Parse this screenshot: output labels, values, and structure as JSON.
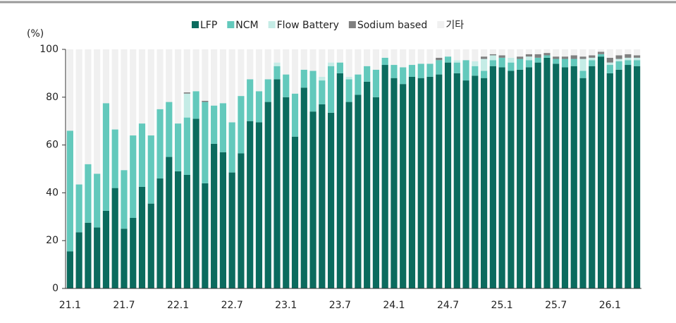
{
  "chart_data": {
    "type": "stacked_bar",
    "y_unit_label": "(%)",
    "categories": [
      "21.1",
      null,
      null,
      null,
      null,
      null,
      "21.7",
      null,
      null,
      null,
      null,
      null,
      "22.1",
      null,
      null,
      null,
      null,
      null,
      "22.7",
      null,
      null,
      null,
      null,
      null,
      "23.1",
      null,
      null,
      null,
      null,
      null,
      "23.7",
      null,
      null,
      null,
      null,
      null,
      "24.1",
      null,
      null,
      null,
      null,
      null,
      "24.7",
      null,
      null,
      null,
      null,
      null,
      "25.1",
      null,
      null,
      null,
      null,
      null,
      "25.7",
      null,
      null,
      null,
      null,
      null,
      "26.1",
      null,
      null,
      null
    ],
    "series": [
      {
        "name": "LFP",
        "color": "#0b6b5e",
        "values": [
          15.5,
          23.5,
          27.5,
          25.5,
          32.5,
          42,
          25,
          29.5,
          42.5,
          35.5,
          46,
          55,
          49,
          47.5,
          71,
          44,
          60.5,
          57,
          48.5,
          56.5,
          70,
          69.5,
          78,
          87.5,
          80,
          63.5,
          84,
          74,
          77,
          73.5,
          90,
          78,
          81,
          86.5,
          80,
          93.5,
          88,
          85.5,
          88.5,
          88,
          88.5,
          89.5,
          94.5,
          90,
          87,
          89,
          88,
          93,
          92.5,
          91,
          91.5,
          92.5,
          94.5,
          96.5,
          94,
          92.5,
          93,
          88,
          93,
          97,
          90,
          91.5,
          93.5,
          93
        ]
      },
      {
        "name": "NCM",
        "color": "#63c9bc",
        "values": [
          50.5,
          20,
          24.5,
          22.5,
          45,
          24.5,
          24.5,
          34.5,
          26.5,
          28.5,
          29,
          23,
          20,
          24,
          11.5,
          34,
          16,
          20.5,
          21,
          24,
          17.5,
          13,
          9.5,
          5.5,
          9.5,
          18,
          7.5,
          17,
          10,
          19.5,
          4.5,
          9.5,
          8.5,
          6.5,
          11.5,
          3,
          5.5,
          7,
          5,
          6,
          5.5,
          6,
          2.5,
          4.5,
          8.5,
          4,
          3,
          2.5,
          4,
          3.5,
          4.5,
          3,
          2,
          1,
          2,
          3.5,
          3,
          3,
          2.5,
          1,
          3.5,
          3.5,
          2,
          2.5
        ]
      },
      {
        "name": "Flow Battery",
        "color": "#c5ece6",
        "values": [
          0,
          0,
          0,
          0,
          0,
          0,
          0,
          0,
          0,
          0,
          0,
          0,
          0,
          10,
          0,
          0,
          0,
          0,
          0,
          0,
          0,
          0,
          0,
          1.5,
          0,
          0,
          0,
          0,
          1.5,
          1.5,
          0,
          1,
          0,
          0,
          0,
          0,
          0,
          0,
          0,
          0,
          0,
          0,
          0,
          1,
          0,
          2,
          5,
          2,
          0,
          2,
          0,
          1.5,
          0,
          0,
          0,
          0,
          0,
          5,
          1,
          0,
          1,
          1,
          1,
          1
        ]
      },
      {
        "name": "Sodium based",
        "color": "#808080",
        "values": [
          0,
          0,
          0,
          0,
          0,
          0,
          0,
          0,
          0,
          0,
          0,
          0,
          0,
          0.5,
          0,
          0.5,
          0,
          0,
          0,
          0,
          0,
          0,
          0,
          0,
          0,
          0,
          0,
          0,
          0,
          0,
          0,
          0,
          0,
          0,
          0,
          0,
          0,
          0,
          0,
          0,
          0,
          1,
          0,
          0,
          0,
          0,
          1,
          0.5,
          1,
          0,
          1,
          1,
          1.5,
          1,
          1,
          1,
          1.5,
          1,
          1,
          1,
          2,
          1.5,
          1.5,
          1
        ]
      },
      {
        "name": "기타",
        "color": "#f0f0f0",
        "values": [
          34,
          56.5,
          48,
          52,
          22.5,
          33.5,
          50.5,
          36,
          31,
          36,
          25,
          22,
          31,
          18,
          17.5,
          21.5,
          23.5,
          22.5,
          30.5,
          19.5,
          12.5,
          17.5,
          12.5,
          5.5,
          10.5,
          18.5,
          8.5,
          9,
          11.5,
          5.5,
          5.5,
          11.5,
          10.5,
          7,
          8.5,
          3.5,
          6.5,
          7.5,
          6.5,
          6,
          6,
          3.5,
          3,
          4.5,
          4.5,
          5,
          3,
          2,
          2.5,
          3.5,
          3,
          2,
          2,
          1.5,
          3,
          3,
          2.5,
          3,
          2.5,
          1,
          3.5,
          2.5,
          2,
          2.5
        ]
      }
    ],
    "ylim": [
      0,
      100
    ],
    "yticks": [
      0,
      20,
      40,
      60,
      80,
      100
    ],
    "grid": false,
    "legend": "top"
  }
}
